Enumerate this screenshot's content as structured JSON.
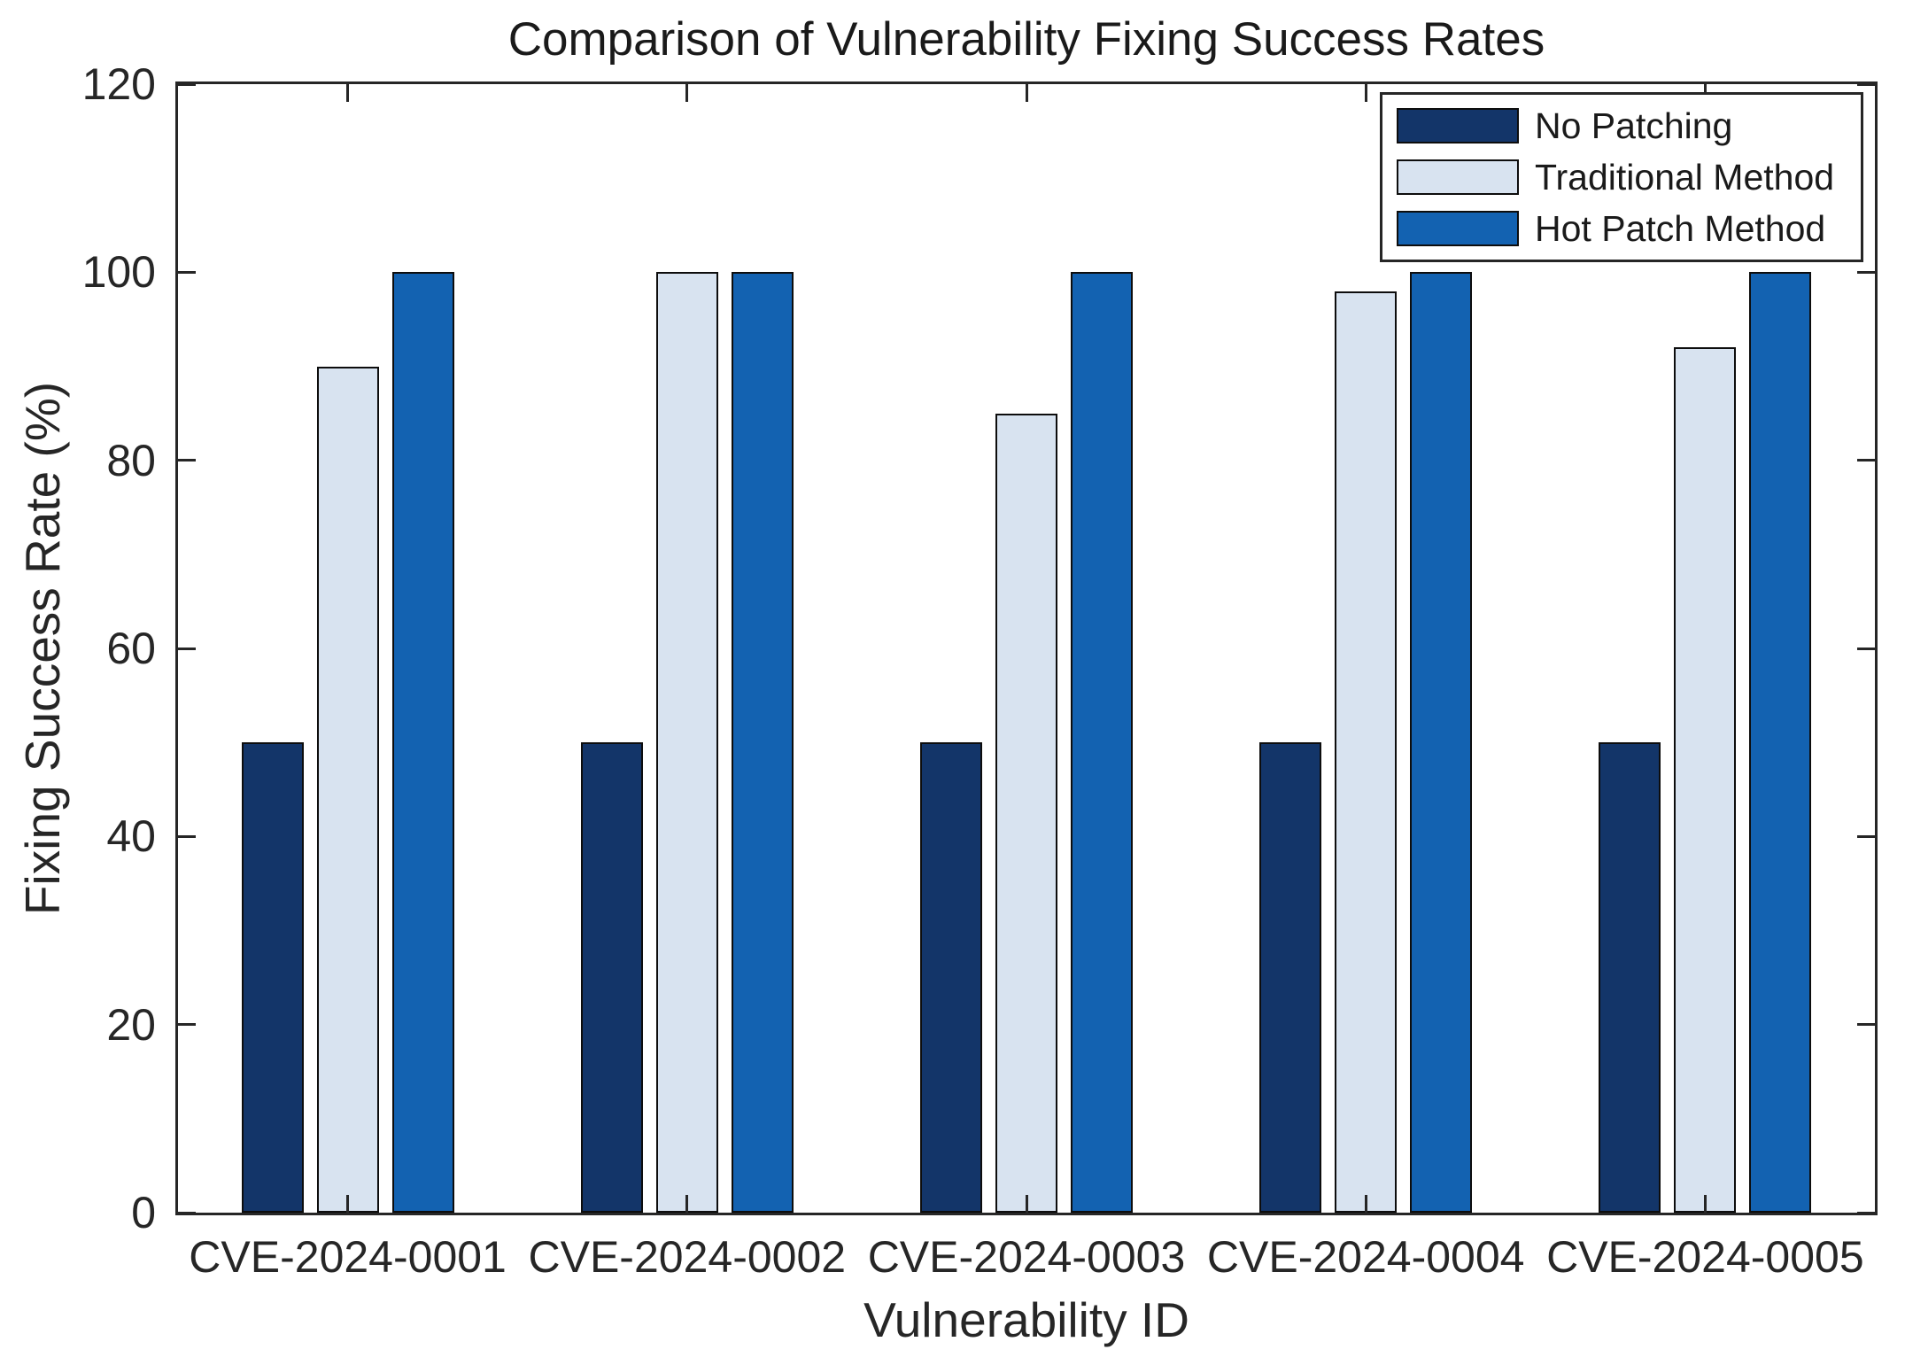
{
  "title": "Comparison of Vulnerability Fixing Success Rates",
  "colors": {
    "background": "#ffffff",
    "axis": "#262626",
    "bar_edge": "#0d0d0d",
    "no_patching": "#133569",
    "traditional_method": "#D8E3F0",
    "hot_patch_method": "#1362B1"
  },
  "chart_data": {
    "type": "bar",
    "title": "Comparison of Vulnerability Fixing Success Rates",
    "xlabel": "Vulnerability ID",
    "ylabel": "Fixing Success Rate (%)",
    "categories": [
      "CVE-2024-0001",
      "CVE-2024-0002",
      "CVE-2024-0003",
      "CVE-2024-0004",
      "CVE-2024-0005"
    ],
    "series": [
      {
        "name": "No Patching",
        "color": "#133569",
        "values": [
          50,
          50,
          50,
          50,
          50
        ]
      },
      {
        "name": "Traditional Method",
        "color": "#D8E3F0",
        "values": [
          90,
          100,
          85,
          98,
          92
        ]
      },
      {
        "name": "Hot Patch Method",
        "color": "#1362B1",
        "values": [
          100,
          100,
          100,
          100,
          100
        ]
      }
    ],
    "ylim": [
      0,
      120
    ],
    "yticks": [
      0,
      20,
      40,
      60,
      80,
      100,
      120
    ],
    "grid": false,
    "legend_position": "top-right"
  }
}
